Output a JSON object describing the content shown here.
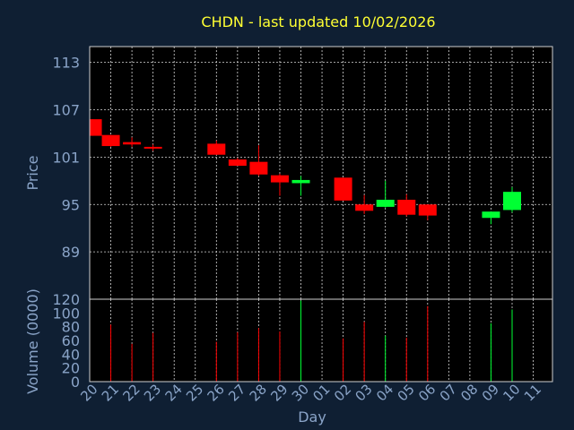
{
  "chart_data": {
    "type": "candlestick",
    "title": "CHDN - last updated 10/02/2026",
    "xlabel": "Day",
    "price_panel": {
      "ylabel": "Price",
      "yticks": [
        89,
        95,
        101,
        107,
        113
      ],
      "ylim": [
        83,
        115
      ]
    },
    "volume_panel": {
      "ylabel": "Volume (0000)",
      "yticks": [
        0,
        20,
        40,
        60,
        80,
        100,
        120
      ],
      "ylim": [
        0,
        120
      ]
    },
    "x_labels": [
      "20",
      "21",
      "22",
      "23",
      "24",
      "25",
      "26",
      "27",
      "28",
      "29",
      "30",
      "01",
      "02",
      "03",
      "04",
      "05",
      "06",
      "07",
      "08",
      "09",
      "10",
      "11"
    ],
    "colors": {
      "up": "#00ff33",
      "down": "#ff0000",
      "title": "#ffff33",
      "axis_text": "#8aa4c8",
      "background": "#0f1f33",
      "plot_bg": "#000000"
    },
    "candles": [
      {
        "x": 0.15,
        "open": 105.8,
        "high": 105.8,
        "low": 103.7,
        "close": 103.7,
        "volume": 0
      },
      {
        "x": 1,
        "open": 103.8,
        "high": 103.8,
        "low": 102.3,
        "close": 102.4,
        "volume": 83
      },
      {
        "x": 2,
        "open": 102.9,
        "high": 103.5,
        "low": 102.3,
        "close": 102.6,
        "volume": 55
      },
      {
        "x": 3,
        "open": 102.3,
        "high": 102.6,
        "low": 101.8,
        "close": 102.2,
        "volume": 71
      },
      {
        "x": 6,
        "open": 102.7,
        "high": 103.1,
        "low": 101.3,
        "close": 101.3,
        "volume": 58
      },
      {
        "x": 7,
        "open": 100.7,
        "high": 100.9,
        "low": 99.9,
        "close": 99.9,
        "volume": 72
      },
      {
        "x": 8,
        "open": 100.4,
        "high": 102.5,
        "low": 98.6,
        "close": 98.8,
        "volume": 78
      },
      {
        "x": 9,
        "open": 98.7,
        "high": 98.9,
        "low": 96.1,
        "close": 97.8,
        "volume": 73
      },
      {
        "x": 10,
        "open": 97.7,
        "high": 98.6,
        "low": 96.1,
        "close": 98.1,
        "volume": 118
      },
      {
        "x": 12,
        "open": 98.4,
        "high": 98.4,
        "low": 95.5,
        "close": 95.5,
        "volume": 63
      },
      {
        "x": 13,
        "open": 95.0,
        "high": 96.2,
        "low": 93.8,
        "close": 94.2,
        "volume": 87
      },
      {
        "x": 14,
        "open": 94.7,
        "high": 98.0,
        "low": 94.6,
        "close": 95.6,
        "volume": 67
      },
      {
        "x": 15,
        "open": 95.6,
        "high": 96.3,
        "low": 93.5,
        "close": 93.7,
        "volume": 64
      },
      {
        "x": 16,
        "open": 95.0,
        "high": 95.0,
        "low": 93.0,
        "close": 93.6,
        "volume": 110
      },
      {
        "x": 19,
        "open": 93.3,
        "high": 94.1,
        "low": 92.5,
        "close": 94.1,
        "volume": 85
      },
      {
        "x": 20,
        "open": 94.3,
        "high": 97.2,
        "low": 94.0,
        "close": 96.6,
        "volume": 105
      }
    ]
  }
}
